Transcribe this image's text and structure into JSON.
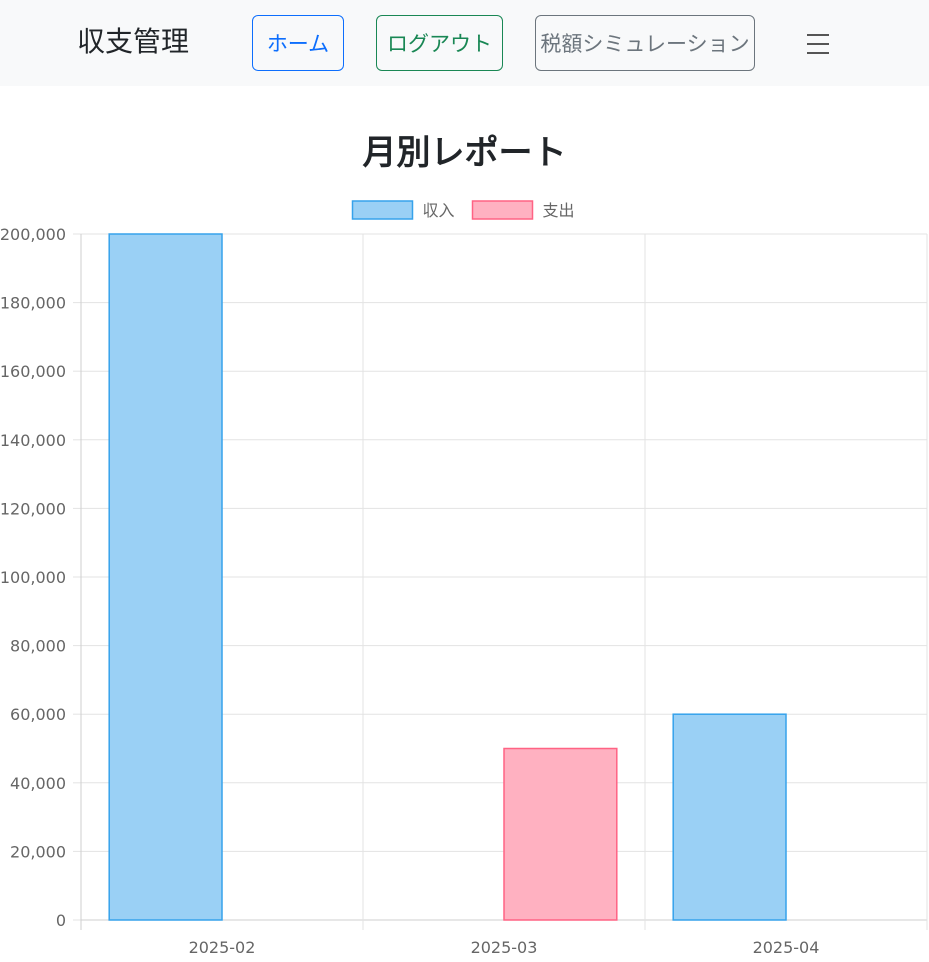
{
  "navbar": {
    "brand": "収支管理",
    "home_label": "ホーム",
    "logout_label": "ログアウト",
    "tax_label": "税額シミュレーション"
  },
  "page": {
    "title": "月別レポート"
  },
  "colors": {
    "income_fill": "#9ad0f5",
    "income_border": "#36a2eb",
    "expense_fill": "#ffb1c1",
    "expense_border": "#ff6384"
  },
  "chart_data": {
    "type": "bar",
    "title": "",
    "categories": [
      "2025-02",
      "2025-03",
      "2025-04"
    ],
    "series": [
      {
        "name": "収入",
        "values": [
          200000,
          0,
          60000
        ]
      },
      {
        "name": "支出",
        "values": [
          0,
          50000,
          0
        ]
      }
    ],
    "ylim": [
      0,
      200000
    ],
    "yticks": [
      0,
      20000,
      40000,
      60000,
      80000,
      100000,
      120000,
      140000,
      160000,
      180000,
      200000
    ],
    "ytick_labels": [
      "0",
      "20,000",
      "40,000",
      "60,000",
      "80,000",
      "100,000",
      "120,000",
      "140,000",
      "160,000",
      "180,000",
      "200,000"
    ],
    "grid": true,
    "legend": "top-center"
  }
}
